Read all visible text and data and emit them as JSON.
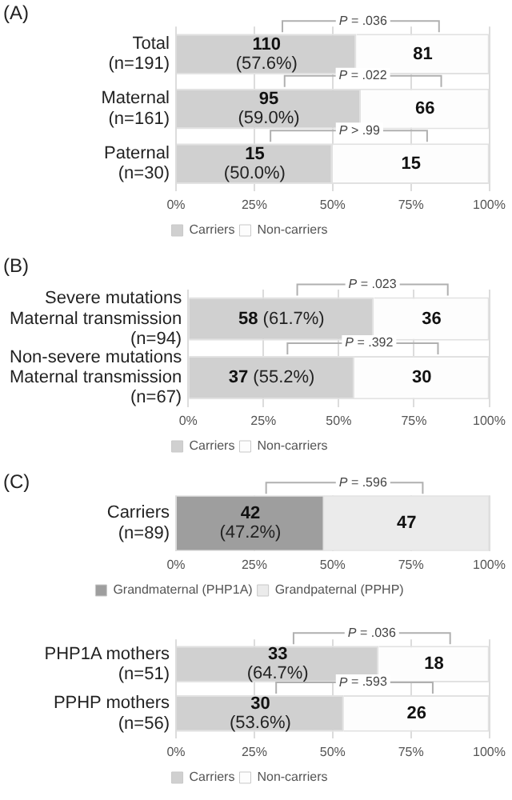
{
  "chart_data": [
    {
      "type": "bar",
      "title": "(A)",
      "orientation": "horizontal",
      "stacked": true,
      "categories": [
        "Total\n(n=191)",
        "Maternal\n(n=161)",
        "Paternal\n(n=30)"
      ],
      "series": [
        {
          "name": "Carriers",
          "color": "#d0d0d0",
          "values": [
            57.6,
            59.0,
            50.0
          ],
          "value_labels": [
            "110\n(57.6%)",
            "95\n(59.0%)",
            "15\n(50.0%)"
          ]
        },
        {
          "name": "Non-carriers",
          "color": "#fdfdfd",
          "values": [
            42.4,
            41.0,
            50.0
          ]
        }
      ],
      "xlim": [
        0,
        100
      ],
      "xticks": [
        {
          "value": 0,
          "label": "0%"
        },
        {
          "value": 25,
          "label": "25%"
        },
        {
          "value": 50,
          "label": "50%"
        },
        {
          "value": 75,
          "label": "75%"
        },
        {
          "value": 100,
          "label": "100%"
        }
      ],
      "grid": "x",
      "legend": "bottom",
      "annotations": [
        "P = .036",
        "P = .022",
        "P > .99",
        "81",
        "66",
        "15"
      ]
    },
    {
      "type": "bar",
      "title": "(B)",
      "orientation": "horizontal",
      "stacked": true,
      "categories": [
        "Severe mutations\nMaternal transmission\n(n=94)",
        "Non-severe mutations\nMaternal transmission\n(n=67)"
      ],
      "series": [
        {
          "name": "Carriers",
          "color": "#d0d0d0",
          "values": [
            61.7,
            55.2
          ],
          "value_labels": [
            "58 (61.7%)",
            "37 (55.2%)"
          ]
        },
        {
          "name": "Non-carriers",
          "color": "#fdfdfd",
          "values": [
            38.3,
            44.8
          ]
        }
      ],
      "xlim": [
        0,
        100
      ],
      "xticks": [
        {
          "value": 0,
          "label": "0%"
        },
        {
          "value": 25,
          "label": "25%"
        },
        {
          "value": 50,
          "label": "50%"
        },
        {
          "value": 75,
          "label": "75%"
        },
        {
          "value": 100,
          "label": "100%"
        }
      ],
      "grid": "x",
      "legend": "bottom",
      "annotations": [
        "P = .023",
        "P = .392",
        "36",
        "30"
      ]
    },
    {
      "type": "bar",
      "title": "(C)",
      "orientation": "horizontal",
      "stacked": true,
      "categories": [
        "Carriers\n(n=89)"
      ],
      "series": [
        {
          "name": "Grandmaternal (PHP1A)",
          "color": "#9e9e9e",
          "values": [
            47.2
          ],
          "value_labels": [
            "42\n(47.2%)"
          ]
        },
        {
          "name": "Grandpaternal (PPHP)",
          "color": "#ebebeb",
          "values": [
            52.8
          ]
        }
      ],
      "xlim": [
        0,
        100
      ],
      "xticks": [
        {
          "value": 0,
          "label": "0%"
        },
        {
          "value": 25,
          "label": "25%"
        },
        {
          "value": 50,
          "label": "50%"
        },
        {
          "value": 75,
          "label": "75%"
        },
        {
          "value": 100,
          "label": "100%"
        }
      ],
      "grid": "x",
      "legend": "bottom",
      "annotations": [
        "P = .596",
        "47"
      ]
    },
    {
      "type": "bar",
      "orientation": "horizontal",
      "stacked": true,
      "categories": [
        "PHP1A mothers\n(n=51)",
        "PPHP mothers\n(n=56)"
      ],
      "series": [
        {
          "name": "Carriers",
          "color": "#d0d0d0",
          "values": [
            64.7,
            53.6
          ],
          "value_labels": [
            "33\n(64.7%)",
            "30\n(53.6%)"
          ]
        },
        {
          "name": "Non-carriers",
          "color": "#fdfdfd",
          "values": [
            35.3,
            46.4
          ]
        }
      ],
      "xlim": [
        0,
        100
      ],
      "xticks": [
        {
          "value": 0,
          "label": "0%"
        },
        {
          "value": 25,
          "label": "25%"
        },
        {
          "value": 50,
          "label": "50%"
        },
        {
          "value": 75,
          "label": "75%"
        },
        {
          "value": 100,
          "label": "100%"
        }
      ],
      "grid": "x",
      "legend": "bottom",
      "annotations": [
        "P = .036",
        "P = .593",
        "18",
        "26"
      ]
    }
  ]
}
